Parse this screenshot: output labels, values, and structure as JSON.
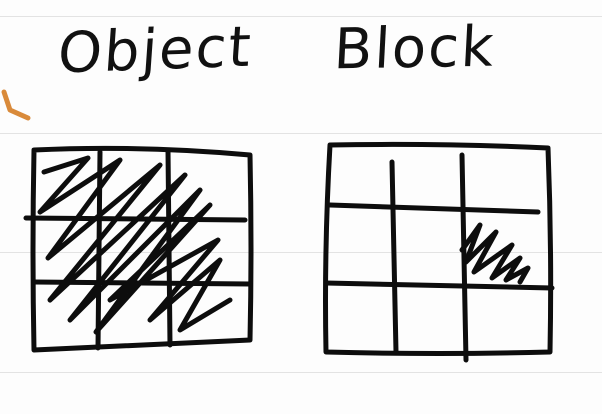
{
  "labels": {
    "object": "Object",
    "block": "Block"
  },
  "colors": {
    "ink": "#0d0d0d",
    "accent_mark": "#d98a3a",
    "rule_line": "#e3e3e3"
  },
  "grids": [
    {
      "name": "object",
      "rows": 3,
      "cols": 3,
      "shaded": "all"
    },
    {
      "name": "block",
      "rows": 3,
      "cols": 3,
      "shaded": [
        [
          1,
          2
        ]
      ]
    }
  ]
}
